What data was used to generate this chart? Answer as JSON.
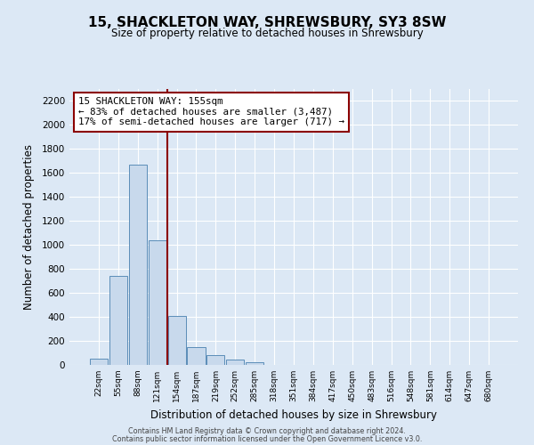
{
  "title": "15, SHACKLETON WAY, SHREWSBURY, SY3 8SW",
  "subtitle": "Size of property relative to detached houses in Shrewsbury",
  "xlabel": "Distribution of detached houses by size in Shrewsbury",
  "ylabel": "Number of detached properties",
  "bin_labels": [
    "22sqm",
    "55sqm",
    "88sqm",
    "121sqm",
    "154sqm",
    "187sqm",
    "219sqm",
    "252sqm",
    "285sqm",
    "318sqm",
    "351sqm",
    "384sqm",
    "417sqm",
    "450sqm",
    "483sqm",
    "516sqm",
    "548sqm",
    "581sqm",
    "614sqm",
    "647sqm",
    "680sqm"
  ],
  "bar_values": [
    50,
    745,
    1670,
    1040,
    405,
    148,
    82,
    42,
    24,
    0,
    0,
    0,
    0,
    0,
    0,
    0,
    0,
    0,
    0,
    0,
    0
  ],
  "bar_color": "#c8d9ec",
  "bar_edge_color": "#5b8db8",
  "property_line_color": "#8b0000",
  "annotation_title": "15 SHACKLETON WAY: 155sqm",
  "annotation_line1": "← 83% of detached houses are smaller (3,487)",
  "annotation_line2": "17% of semi-detached houses are larger (717) →",
  "annotation_box_color": "#8b0000",
  "ylim": [
    0,
    2300
  ],
  "yticks": [
    0,
    200,
    400,
    600,
    800,
    1000,
    1200,
    1400,
    1600,
    1800,
    2000,
    2200
  ],
  "footer1": "Contains HM Land Registry data © Crown copyright and database right 2024.",
  "footer2": "Contains public sector information licensed under the Open Government Licence v3.0.",
  "background_color": "#dce8f5",
  "plot_bg_color": "#dce8f5"
}
